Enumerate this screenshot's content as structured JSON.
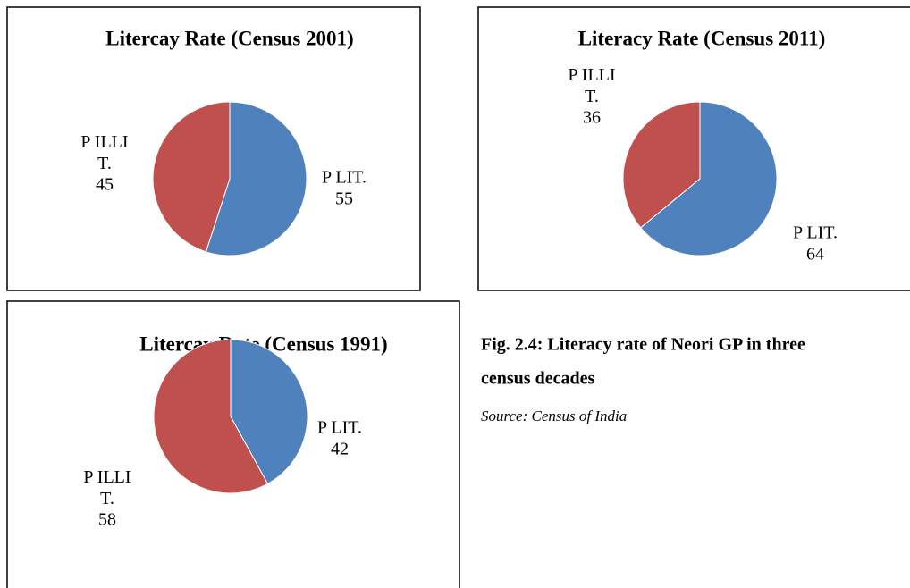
{
  "chart_data": [
    {
      "type": "pie",
      "title": "Litercay Rate (Census 2001)",
      "categories": [
        "P LIT.",
        "P ILLIT."
      ],
      "values": [
        55,
        45
      ],
      "colors": [
        "#4f81bd",
        "#c0504d"
      ]
    },
    {
      "type": "pie",
      "title": "Literacy Rate (Census 2011)",
      "categories": [
        "P LIT.",
        "P ILLIT."
      ],
      "values": [
        64,
        36
      ],
      "colors": [
        "#4f81bd",
        "#c0504d"
      ]
    },
    {
      "type": "pie",
      "title": "Litercay Rate (Census 1991)",
      "categories": [
        "P LIT.",
        "P ILLIT."
      ],
      "values": [
        42,
        58
      ],
      "colors": [
        "#4f81bd",
        "#c0504d"
      ]
    }
  ],
  "caption": {
    "title_line1": "Fig. 2.4: Literacy rate of Neori GP in three",
    "title_line2": "census decades",
    "source": "Source: Census of India"
  }
}
